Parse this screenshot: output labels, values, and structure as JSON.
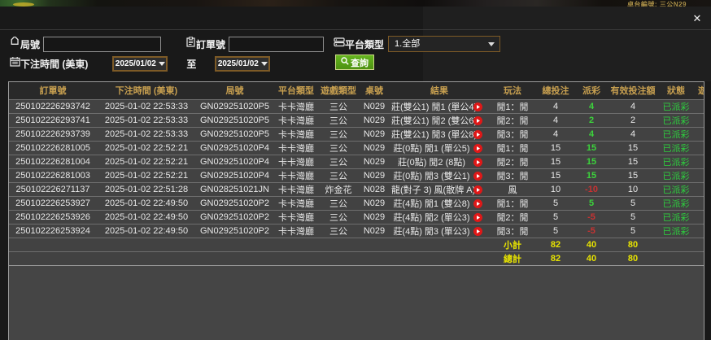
{
  "background": {
    "table_label": "卓台編號: 三公N29"
  },
  "dialog": {
    "close_icon": "✕",
    "filters": {
      "round_label": "局號",
      "round_value": "",
      "order_label": "訂單號",
      "order_value": "",
      "platform_label": "平台類型",
      "platform_value": "1.全部",
      "time_label": "下注時間 (美東)",
      "date_from": "2025/01/02",
      "to_label": "至",
      "date_to": "2025/01/02",
      "search_label": "查詢"
    },
    "table": {
      "headers": [
        "訂單號",
        "下注時間 (美東)",
        "局號",
        "平台類型",
        "遊戲類型",
        "桌號",
        "結果",
        "玩法",
        "總投注",
        "派彩",
        "有效投注額",
        "狀態",
        "遊戲模式"
      ],
      "rows": [
        {
          "order": "250102226293742",
          "time": "2025-01-02 22:53:33",
          "round": "GN029251020P5",
          "platform": "卡卡灣廳",
          "game": "三公",
          "table": "N029",
          "result": "莊(雙公1) 閒1 (單公4)",
          "play": "閒1：閒",
          "bet": "4",
          "payout": "4",
          "valid": "4",
          "status": "已派彩",
          "mode": "-"
        },
        {
          "order": "250102226293741",
          "time": "2025-01-02 22:53:33",
          "round": "GN029251020P5",
          "platform": "卡卡灣廳",
          "game": "三公",
          "table": "N029",
          "result": "莊(雙公1) 閒2 (雙公6)",
          "play": "閒2：閒",
          "bet": "4",
          "payout": "2",
          "valid": "2",
          "status": "已派彩",
          "mode": "-"
        },
        {
          "order": "250102226293739",
          "time": "2025-01-02 22:53:33",
          "round": "GN029251020P5",
          "platform": "卡卡灣廳",
          "game": "三公",
          "table": "N029",
          "result": "莊(雙公1) 閒3 (單公8)",
          "play": "閒3：閒",
          "bet": "4",
          "payout": "4",
          "valid": "4",
          "status": "已派彩",
          "mode": "-"
        },
        {
          "order": "250102226281005",
          "time": "2025-01-02 22:52:21",
          "round": "GN029251020P4",
          "platform": "卡卡灣廳",
          "game": "三公",
          "table": "N029",
          "result": "莊(0點) 閒1 (單公5)",
          "play": "閒1：閒",
          "bet": "15",
          "payout": "15",
          "valid": "15",
          "status": "已派彩",
          "mode": "-"
        },
        {
          "order": "250102226281004",
          "time": "2025-01-02 22:52:21",
          "round": "GN029251020P4",
          "platform": "卡卡灣廳",
          "game": "三公",
          "table": "N029",
          "result": "莊(0點) 閒2 (8點)",
          "play": "閒2：閒",
          "bet": "15",
          "payout": "15",
          "valid": "15",
          "status": "已派彩",
          "mode": "-"
        },
        {
          "order": "250102226281003",
          "time": "2025-01-02 22:52:21",
          "round": "GN029251020P4",
          "platform": "卡卡灣廳",
          "game": "三公",
          "table": "N029",
          "result": "莊(0點) 閒3 (雙公1)",
          "play": "閒3：閒",
          "bet": "15",
          "payout": "15",
          "valid": "15",
          "status": "已派彩",
          "mode": "-"
        },
        {
          "order": "250102226271137",
          "time": "2025-01-02 22:51:28",
          "round": "GN028251021JN",
          "platform": "卡卡灣廳",
          "game": "炸金花",
          "table": "N028",
          "result": "龍(對子 3) 鳳(散牌 A)",
          "play": "鳳",
          "bet": "10",
          "payout": "-10",
          "valid": "10",
          "status": "已派彩",
          "mode": "-"
        },
        {
          "order": "250102226253927",
          "time": "2025-01-02 22:49:50",
          "round": "GN029251020P2",
          "platform": "卡卡灣廳",
          "game": "三公",
          "table": "N029",
          "result": "莊(4點) 閒1 (雙公8)",
          "play": "閒1：閒",
          "bet": "5",
          "payout": "5",
          "valid": "5",
          "status": "已派彩",
          "mode": "-"
        },
        {
          "order": "250102226253926",
          "time": "2025-01-02 22:49:50",
          "round": "GN029251020P2",
          "platform": "卡卡灣廳",
          "game": "三公",
          "table": "N029",
          "result": "莊(4點) 閒2 (單公3)",
          "play": "閒2：閒",
          "bet": "5",
          "payout": "-5",
          "valid": "5",
          "status": "已派彩",
          "mode": "-"
        },
        {
          "order": "250102226253924",
          "time": "2025-01-02 22:49:50",
          "round": "GN029251020P2",
          "platform": "卡卡灣廳",
          "game": "三公",
          "table": "N029",
          "result": "莊(4點) 閒3 (單公3)",
          "play": "閒3：閒",
          "bet": "5",
          "payout": "-5",
          "valid": "5",
          "status": "已派彩",
          "mode": "-"
        }
      ],
      "subtotal_label": "小計",
      "subtotal": {
        "bet": "82",
        "payout": "40",
        "valid": "80"
      },
      "total_label": "總計",
      "total": {
        "bet": "82",
        "payout": "40",
        "valid": "80"
      }
    }
  },
  "colors": {
    "header_gold": "#c8a050",
    "positive_green": "#3cd43c",
    "negative_red": "#c83232",
    "total_yellow": "#e8e400",
    "status_green": "#2ecc3e",
    "search_button_green": "#4d9111",
    "date_border_brown": "#7d5a26",
    "play_icon_red": "#e01818"
  }
}
